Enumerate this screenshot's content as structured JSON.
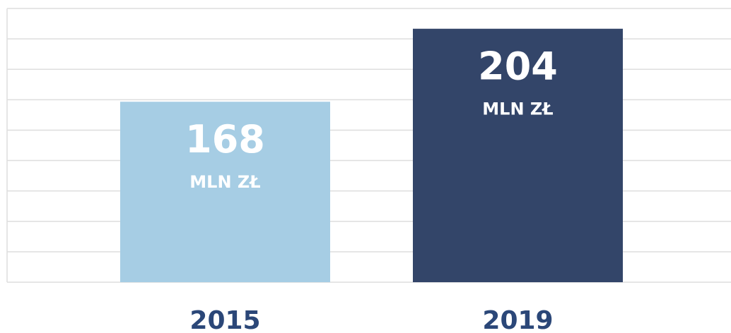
{
  "chart_data": {
    "type": "bar",
    "categories": [
      "2015",
      "2019"
    ],
    "values": [
      168,
      204
    ],
    "colors": [
      "#a6cde4",
      "#334569"
    ],
    "value_unit": "MLN ZŁ",
    "ylim": [
      79,
      214
    ],
    "yticks": [
      79,
      94,
      109,
      124,
      139,
      154,
      169,
      184,
      199,
      214
    ],
    "grid": true
  }
}
